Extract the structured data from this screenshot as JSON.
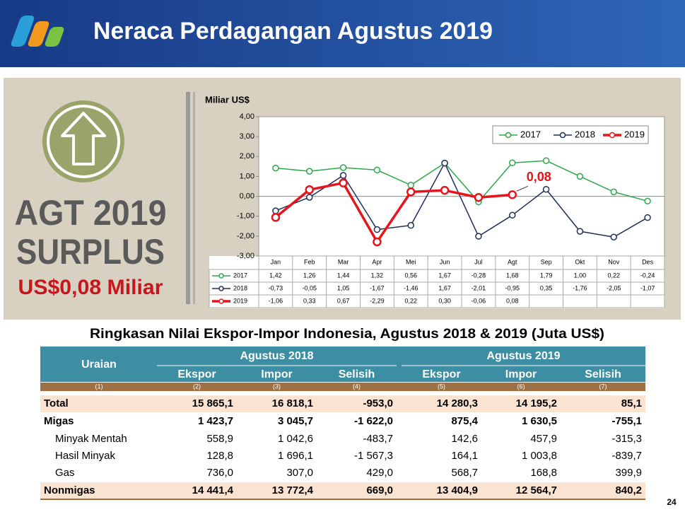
{
  "header": {
    "title": "Neraca Perdagangan Agustus 2019"
  },
  "summary": {
    "period": "AGT 2019",
    "status": "SURPLUS",
    "amount": "US$0,08 Miliar"
  },
  "chart_data": {
    "type": "line",
    "y_label": "Miliar US$",
    "categories": [
      "Jan",
      "Feb",
      "Mar",
      "Apr",
      "Mei",
      "Jun",
      "Jul",
      "Agt",
      "Sep",
      "Okt",
      "Nov",
      "Des"
    ],
    "series": [
      {
        "name": "2017",
        "color": "#2aa84a",
        "values": [
          1.42,
          1.26,
          1.44,
          1.32,
          0.56,
          1.67,
          -0.28,
          1.68,
          1.79,
          1.0,
          0.22,
          -0.24
        ],
        "value_labels": [
          "1,42",
          "1,26",
          "1,44",
          "1,32",
          "0,56",
          "1,67",
          "-0,28",
          "1,68",
          "1,79",
          "1,00",
          "0,22",
          "-0,24"
        ]
      },
      {
        "name": "2018",
        "color": "#1f2d5a",
        "values": [
          -0.73,
          -0.05,
          1.05,
          -1.67,
          -1.46,
          1.67,
          -2.01,
          -0.95,
          0.35,
          -1.76,
          -2.05,
          -1.07
        ],
        "value_labels": [
          "-0,73",
          "-0,05",
          "1,05",
          "-1,67",
          "-1,46",
          "1,67",
          "-2,01",
          "-0,95",
          "0,35",
          "-1,76",
          "-2,05",
          "-1,07"
        ]
      },
      {
        "name": "2019",
        "color": "#e8141b",
        "values": [
          -1.06,
          0.33,
          0.67,
          -2.29,
          0.22,
          0.3,
          -0.06,
          0.08,
          null,
          null,
          null,
          null
        ],
        "value_labels": [
          "-1,06",
          "0,33",
          "0,67",
          "-2,29",
          "0,22",
          "0,30",
          "-0,06",
          "0,08",
          null,
          null,
          null,
          null
        ]
      }
    ],
    "ylim": [
      -3,
      4
    ],
    "yticks": [
      {
        "value": -3,
        "label": "-3,00"
      },
      {
        "value": -2,
        "label": "-2,00"
      },
      {
        "value": -1,
        "label": "-1,00"
      },
      {
        "value": 0,
        "label": "0,00"
      },
      {
        "value": 1,
        "label": "1,00"
      },
      {
        "value": 2,
        "label": "2,00"
      },
      {
        "value": 3,
        "label": "3,00"
      },
      {
        "value": 4,
        "label": "4,00"
      }
    ],
    "legend": "top-right",
    "annotation": "0,08"
  },
  "table": {
    "title": "Ringkasan Nilai Ekspor-Impor Indonesia, Agustus 2018 & 2019 (Juta US$)",
    "first_header": "Uraian",
    "groups": [
      "Agustus 2018",
      "Agustus 2019"
    ],
    "columns": [
      "Ekspor",
      "Impor",
      "Selisih",
      "Ekspor",
      "Impor",
      "Selisih"
    ],
    "numbers": [
      "(1)",
      "(2)",
      "(3)",
      "(4)",
      "(5)",
      "(6)",
      "(7)"
    ],
    "rows": [
      [
        "Total",
        "15 865,1",
        "16 818,1",
        "-953,0",
        "14 280,3",
        "14 195,2",
        "85,1"
      ],
      [
        "Migas",
        "1 423,7",
        "3 045,7",
        "-1 622,0",
        "875,4",
        "1 630,5",
        "-755,1"
      ],
      [
        "Minyak Mentah",
        "558,9",
        "1 042,6",
        "-483,7",
        "142,6",
        "457,9",
        "-315,3"
      ],
      [
        "Hasil Minyak",
        "128,8",
        "1 696,1",
        "-1 567,3",
        "164,1",
        "1 003,8",
        "-839,7"
      ],
      [
        "Gas",
        "736,0",
        "307,0",
        "429,0",
        "568,7",
        "168,8",
        "399,9"
      ],
      [
        "Nonmigas",
        "14 441,4",
        "13 772,4",
        "669,0",
        "13 404,9",
        "12 564,7",
        "840,2"
      ]
    ]
  },
  "page_number": "24"
}
